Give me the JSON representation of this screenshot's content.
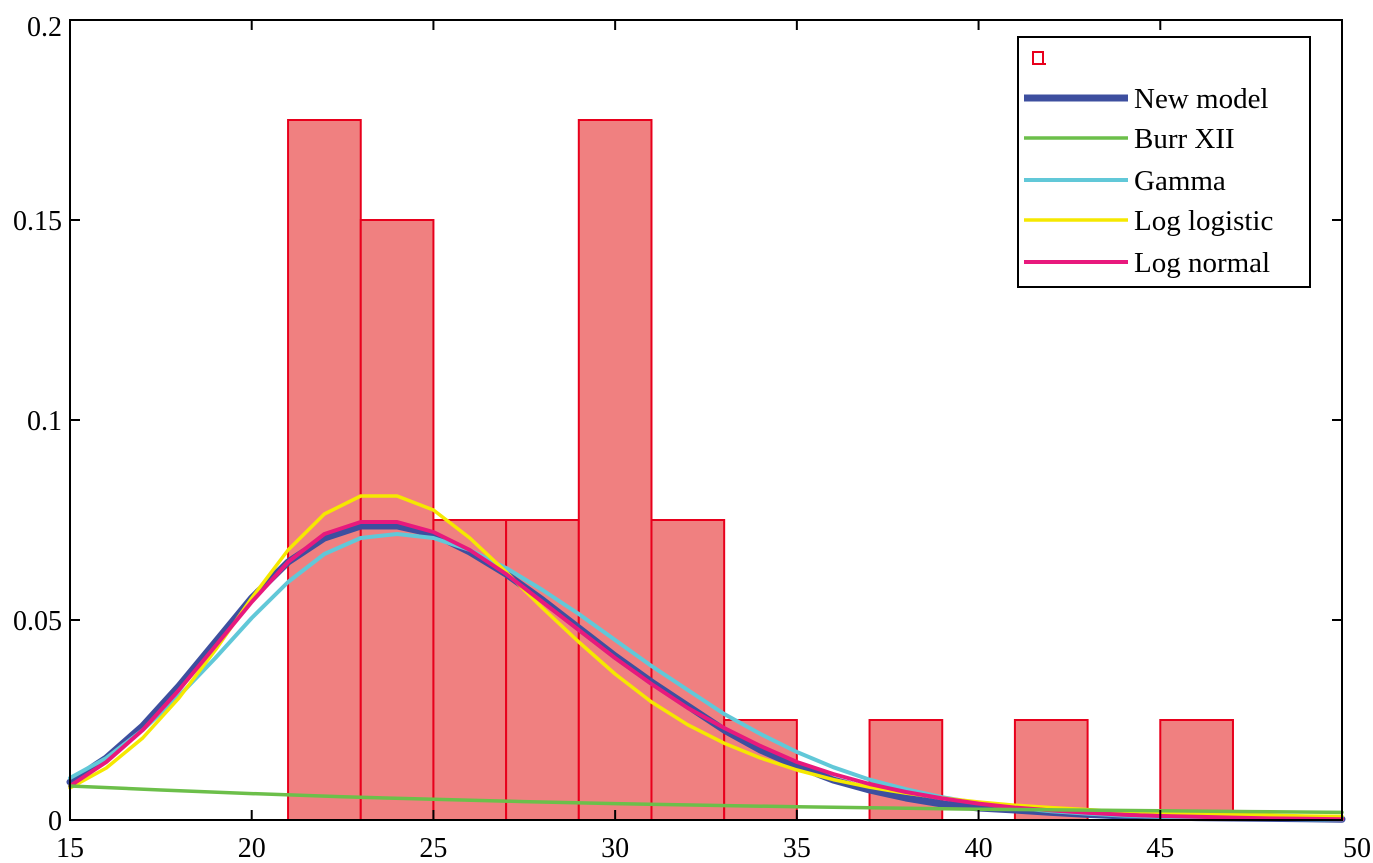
{
  "chart_data": {
    "type": "bar",
    "title": "",
    "xlabel": "",
    "ylabel": "",
    "xlim": [
      15,
      50
    ],
    "ylim": [
      0,
      0.2
    ],
    "x_ticks": [
      15,
      20,
      25,
      30,
      35,
      40,
      45,
      50
    ],
    "x_tick_labels": [
      "15",
      "20",
      "25",
      "30",
      "35",
      "40",
      "45",
      "50"
    ],
    "y_ticks": [
      0,
      0.05,
      0.1,
      0.15,
      0.2
    ],
    "y_tick_labels": [
      "0",
      "0.05",
      "0.1",
      "0.15",
      "0.2"
    ],
    "grid": false,
    "legend_position": "top-right",
    "histogram": {
      "name": "",
      "color": "#f08080",
      "edge_color": "#e8001c",
      "bins": [
        {
          "x0": 21,
          "x1": 23,
          "value": 0.175
        },
        {
          "x0": 23,
          "x1": 25,
          "value": 0.15
        },
        {
          "x0": 25,
          "x1": 27,
          "value": 0.075
        },
        {
          "x0": 27,
          "x1": 29,
          "value": 0.075
        },
        {
          "x0": 29,
          "x1": 31,
          "value": 0.175
        },
        {
          "x0": 31,
          "x1": 33,
          "value": 0.075
        },
        {
          "x0": 33,
          "x1": 35,
          "value": 0.025
        },
        {
          "x0": 35,
          "x1": 37,
          "value": 0
        },
        {
          "x0": 37,
          "x1": 39,
          "value": 0.025
        },
        {
          "x0": 39,
          "x1": 41,
          "value": 0
        },
        {
          "x0": 41,
          "x1": 43,
          "value": 0.025
        },
        {
          "x0": 43,
          "x1": 45,
          "value": 0
        },
        {
          "x0": 45,
          "x1": 47,
          "value": 0.025
        }
      ]
    },
    "series": [
      {
        "name": "New model",
        "color": "#3d4f9f",
        "x": [
          15,
          16,
          17,
          18,
          19,
          20,
          21,
          22,
          23,
          24,
          25,
          26,
          27,
          28,
          29,
          30,
          31,
          32,
          33,
          34,
          35,
          36,
          37,
          38,
          39,
          40,
          41,
          42,
          43,
          44,
          45,
          46,
          47,
          48,
          49,
          50
        ],
        "y": [
          0.0095,
          0.0155,
          0.0235,
          0.0335,
          0.0445,
          0.0555,
          0.0645,
          0.0705,
          0.0735,
          0.0735,
          0.0715,
          0.067,
          0.0615,
          0.055,
          0.048,
          0.041,
          0.0345,
          0.0285,
          0.0225,
          0.0175,
          0.0135,
          0.01,
          0.0075,
          0.0055,
          0.004,
          0.003,
          0.0025,
          0.0019,
          0.0014,
          0.001,
          0.0008,
          0.0006,
          0.0005,
          0.0004,
          0.0003,
          0.0002
        ]
      },
      {
        "name": "Burr XII",
        "color": "#6cbf4a",
        "x": [
          15,
          17.5,
          20,
          22.5,
          25,
          27.5,
          30,
          32.5,
          35,
          37.5,
          40,
          42.5,
          45,
          47.5,
          50
        ],
        "y": [
          0.0085,
          0.0075,
          0.0066,
          0.0058,
          0.0052,
          0.0046,
          0.0041,
          0.0037,
          0.0033,
          0.003,
          0.0027,
          0.0025,
          0.0023,
          0.0021,
          0.0019
        ]
      },
      {
        "name": "Gamma",
        "color": "#61c8d8",
        "x": [
          15,
          16,
          17,
          18,
          19,
          20,
          21,
          22,
          23,
          24,
          25,
          26,
          27,
          28,
          29,
          30,
          31,
          32,
          33,
          34,
          35,
          36,
          37,
          38,
          39,
          40,
          41,
          42,
          43,
          44,
          45,
          46,
          47,
          48,
          49,
          50
        ],
        "y": [
          0.0105,
          0.0155,
          0.0225,
          0.031,
          0.0405,
          0.0505,
          0.0595,
          0.0665,
          0.0705,
          0.0715,
          0.0705,
          0.0675,
          0.063,
          0.0575,
          0.0515,
          0.045,
          0.0385,
          0.0325,
          0.0265,
          0.0215,
          0.017,
          0.0132,
          0.0101,
          0.0077,
          0.0057,
          0.0042,
          0.0031,
          0.0022,
          0.0016,
          0.0011,
          0.0008,
          0.0006,
          0.0004,
          0.0003,
          0.0002,
          0.0001
        ]
      },
      {
        "name": "Log logistic",
        "color": "#f5e800",
        "x": [
          15,
          16,
          17,
          18,
          19,
          20,
          21,
          22,
          23,
          24,
          25,
          26,
          27,
          28,
          29,
          30,
          31,
          32,
          33,
          34,
          35,
          36,
          37,
          38,
          39,
          40,
          41,
          42,
          43,
          44,
          45,
          46,
          47,
          48,
          49,
          50
        ],
        "y": [
          0.008,
          0.013,
          0.0205,
          0.0305,
          0.0425,
          0.0555,
          0.0675,
          0.0765,
          0.081,
          0.081,
          0.0775,
          0.0705,
          0.062,
          0.053,
          0.0445,
          0.0365,
          0.0295,
          0.0238,
          0.0192,
          0.0155,
          0.0125,
          0.0101,
          0.0082,
          0.0067,
          0.0055,
          0.0045,
          0.0037,
          0.0031,
          0.0026,
          0.0022,
          0.0019,
          0.0016,
          0.0014,
          0.0012,
          0.001,
          0.0009
        ]
      },
      {
        "name": "Log normal",
        "color": "#e8197d",
        "x": [
          15,
          16,
          17,
          18,
          19,
          20,
          21,
          22,
          23,
          24,
          25,
          26,
          27,
          28,
          29,
          30,
          31,
          32,
          33,
          34,
          35,
          36,
          37,
          38,
          39,
          40,
          41,
          42,
          43,
          44,
          45,
          46,
          47,
          48,
          49,
          50
        ],
        "y": [
          0.0085,
          0.0145,
          0.0225,
          0.0325,
          0.0435,
          0.0545,
          0.0645,
          0.0715,
          0.0745,
          0.0745,
          0.072,
          0.0675,
          0.0615,
          0.0545,
          0.0475,
          0.0405,
          0.034,
          0.028,
          0.023,
          0.0185,
          0.0145,
          0.0115,
          0.009,
          0.007,
          0.0054,
          0.0041,
          0.0031,
          0.0024,
          0.0018,
          0.0013,
          0.001,
          0.0008,
          0.0006,
          0.0004,
          0.0003,
          0.0002
        ]
      }
    ]
  }
}
